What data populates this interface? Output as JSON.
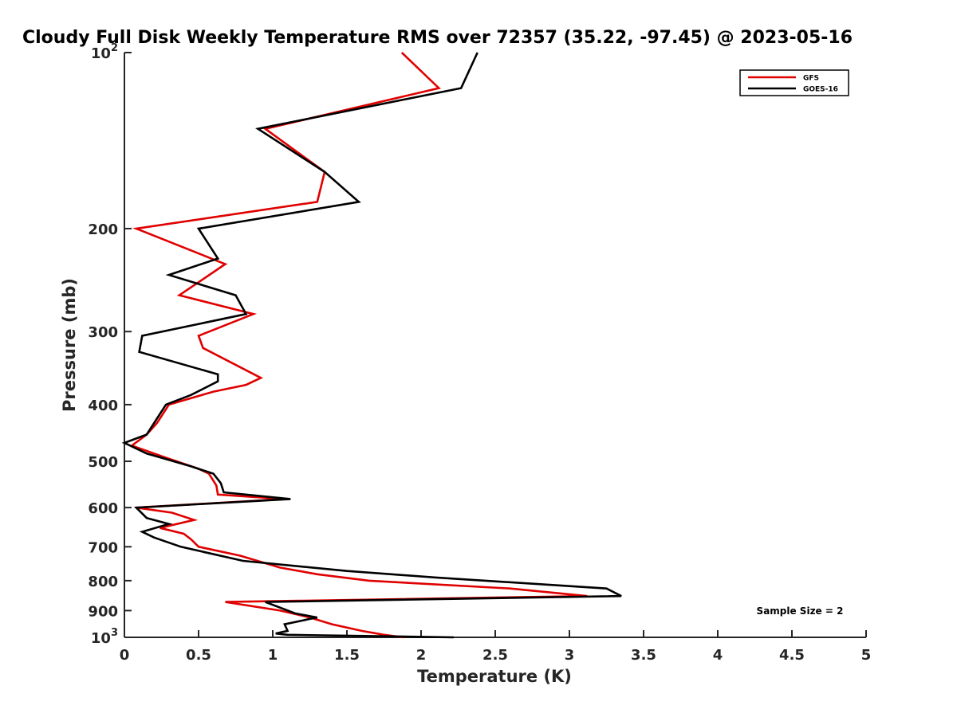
{
  "chart_data": {
    "type": "line",
    "title": "Cloudy Full Disk Weekly Temperature RMS over 72357 (35.22, -97.45) @ 2023-05-16",
    "xlabel": "Temperature (K)",
    "ylabel": "Pressure (mb)",
    "xlim": [
      0,
      5
    ],
    "ylim": [
      100,
      1000
    ],
    "y_scale": "log",
    "y_reversed": true,
    "grid": false,
    "legend_position": "top-right",
    "x_ticks": [
      "0",
      "0.5",
      "1",
      "1.5",
      "2",
      "2.5",
      "3",
      "3.5",
      "4",
      "4.5",
      "5"
    ],
    "y_ticks": [
      {
        "value": 100,
        "base": "10",
        "exp": "2"
      },
      {
        "value": 200,
        "label": "200"
      },
      {
        "value": 300,
        "label": "300"
      },
      {
        "value": 400,
        "label": "400"
      },
      {
        "value": 500,
        "label": "500"
      },
      {
        "value": 600,
        "label": "600"
      },
      {
        "value": 700,
        "label": "700"
      },
      {
        "value": 800,
        "label": "800"
      },
      {
        "value": 900,
        "label": "900"
      },
      {
        "value": 1000,
        "base": "10",
        "exp": "3"
      }
    ],
    "annotation": "Sample Size = 2",
    "series": [
      {
        "name": "GFS",
        "color": "#e00000",
        "points": [
          [
            1.88,
            1000
          ],
          [
            1.75,
            990
          ],
          [
            1.6,
            975
          ],
          [
            1.4,
            950
          ],
          [
            1.25,
            925
          ],
          [
            1.05,
            900
          ],
          [
            0.68,
            870
          ],
          [
            3.12,
            850
          ],
          [
            2.6,
            825
          ],
          [
            1.65,
            800
          ],
          [
            1.3,
            780
          ],
          [
            1.05,
            760
          ],
          [
            0.78,
            725
          ],
          [
            0.5,
            700
          ],
          [
            0.45,
            680
          ],
          [
            0.4,
            665
          ],
          [
            0.24,
            650
          ],
          [
            0.47,
            630
          ],
          [
            0.32,
            612
          ],
          [
            0.08,
            600
          ],
          [
            1.08,
            580
          ],
          [
            0.63,
            570
          ],
          [
            0.62,
            550
          ],
          [
            0.57,
            525
          ],
          [
            0.5,
            515
          ],
          [
            0.25,
            490
          ],
          [
            0.05,
            470
          ],
          [
            0.15,
            450
          ],
          [
            0.22,
            430
          ],
          [
            0.3,
            400
          ],
          [
            0.6,
            380
          ],
          [
            0.82,
            370
          ],
          [
            0.92,
            360
          ],
          [
            0.53,
            320
          ],
          [
            0.5,
            305
          ],
          [
            0.87,
            280
          ],
          [
            0.37,
            260
          ],
          [
            0.68,
            230
          ],
          [
            0.08,
            200
          ],
          [
            1.3,
            180
          ],
          [
            1.35,
            160
          ],
          [
            0.95,
            135
          ],
          [
            2.12,
            115
          ],
          [
            1.87,
            100
          ]
        ]
      },
      {
        "name": "GOES-16",
        "color": "#000000",
        "points": [
          [
            2.22,
            1000
          ],
          [
            1.1,
            990
          ],
          [
            1.02,
            985
          ],
          [
            1.1,
            975
          ],
          [
            1.08,
            950
          ],
          [
            1.25,
            930
          ],
          [
            1.3,
            925
          ],
          [
            1.15,
            910
          ],
          [
            0.95,
            870
          ],
          [
            3.35,
            850
          ],
          [
            3.25,
            825
          ],
          [
            2.1,
            790
          ],
          [
            1.5,
            770
          ],
          [
            0.8,
            740
          ],
          [
            0.38,
            700
          ],
          [
            0.2,
            675
          ],
          [
            0.12,
            660
          ],
          [
            0.3,
            640
          ],
          [
            0.15,
            625
          ],
          [
            0.08,
            600
          ],
          [
            1.12,
            580
          ],
          [
            0.67,
            565
          ],
          [
            0.65,
            545
          ],
          [
            0.6,
            525
          ],
          [
            0.45,
            510
          ],
          [
            0.15,
            485
          ],
          [
            0.0,
            465
          ],
          [
            0.15,
            450
          ],
          [
            0.2,
            430
          ],
          [
            0.28,
            400
          ],
          [
            0.45,
            385
          ],
          [
            0.63,
            365
          ],
          [
            0.63,
            355
          ],
          [
            0.1,
            325
          ],
          [
            0.12,
            305
          ],
          [
            0.82,
            280
          ],
          [
            0.75,
            260
          ],
          [
            0.3,
            240
          ],
          [
            0.63,
            225
          ],
          [
            0.5,
            200
          ],
          [
            1.58,
            180
          ],
          [
            1.35,
            160
          ],
          [
            0.9,
            135
          ],
          [
            2.27,
            115
          ],
          [
            2.38,
            100
          ]
        ]
      }
    ]
  }
}
